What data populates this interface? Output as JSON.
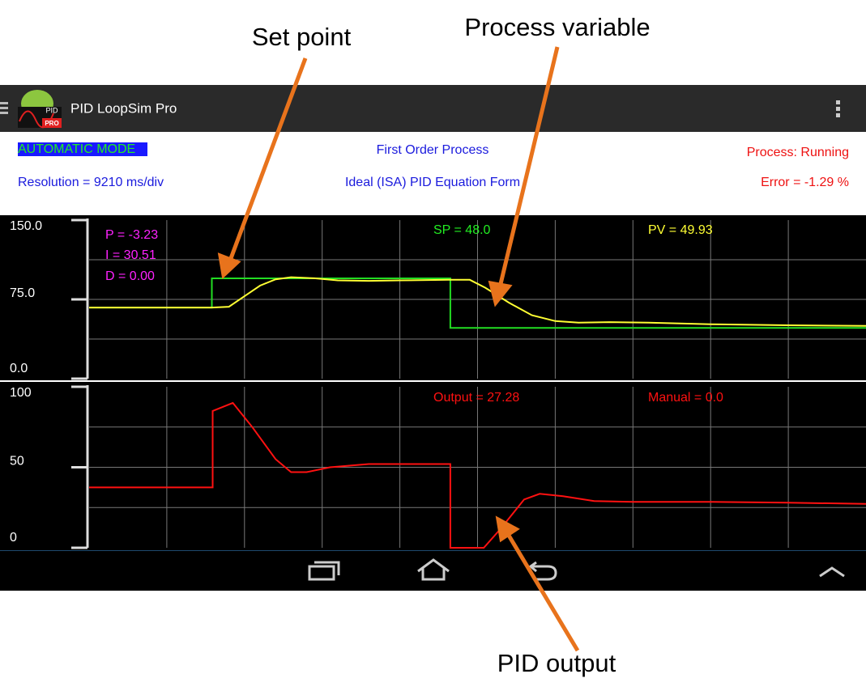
{
  "annotations": {
    "set_point": "Set point",
    "process_variable": "Process variable",
    "pid_output": "PID output"
  },
  "app": {
    "title": "PID LoopSim Pro",
    "icon": {
      "top": "PID",
      "badge": "PRO"
    }
  },
  "status": {
    "mode": "AUTOMATIC MODE",
    "process_type": "First Order Process",
    "process_state": "Process: Running",
    "resolution": "Resolution = 9210 ms/div",
    "equation": "Ideal (ISA) PID Equation Form",
    "error": "Error = -1.29 %"
  },
  "chart_data": [
    {
      "type": "line",
      "grid": true,
      "xlim": [
        0,
        10
      ],
      "ylim": [
        0,
        150
      ],
      "yticks": [
        {
          "value": 0,
          "label": "0.0"
        },
        {
          "value": 75,
          "label": "75.0"
        },
        {
          "value": 150,
          "label": "150.0"
        }
      ],
      "readouts": [
        {
          "text": "P = -3.23",
          "color": "#ff22ff"
        },
        {
          "text": "I = 30.51",
          "color": "#ff22ff"
        },
        {
          "text": "D = 0.00",
          "color": "#ff22ff"
        },
        {
          "text": "SP = 48.0",
          "color": "#22ee22"
        },
        {
          "text": "PV = 49.93",
          "color": "#ffff33"
        }
      ],
      "series": [
        {
          "color": "#22dd22",
          "x": [
            0,
            1.58,
            1.58,
            4.65,
            4.65,
            10
          ],
          "values": [
            67.3,
            67.3,
            94.9,
            94.9,
            48,
            48
          ]
        },
        {
          "color": "#ffff33",
          "x": [
            0,
            1.58,
            1.8,
            2.0,
            2.2,
            2.4,
            2.6,
            2.9,
            3.2,
            3.6,
            4.0,
            4.65,
            4.9,
            5.1,
            5.4,
            5.7,
            6.0,
            6.3,
            6.7,
            7.2,
            8,
            9,
            10
          ],
          "values": [
            67.3,
            67.3,
            68,
            78,
            88,
            94,
            96,
            95,
            93,
            92.5,
            93,
            93.5,
            93.5,
            86,
            72,
            60,
            54.5,
            53,
            53.5,
            53,
            51.5,
            50.5,
            49.93
          ]
        }
      ]
    },
    {
      "type": "line",
      "grid": true,
      "xlim": [
        0,
        10
      ],
      "ylim": [
        0,
        100
      ],
      "yticks": [
        0,
        50,
        100
      ],
      "readouts": [
        {
          "text": "Output = 27.28",
          "color": "#ff1111"
        },
        {
          "text": "Manual = 0.0",
          "color": "#ff1111"
        }
      ],
      "series": [
        {
          "color": "#ff1111",
          "x": [
            0,
            1.59,
            1.59,
            1.85,
            2.1,
            2.4,
            2.6,
            2.8,
            3.1,
            3.6,
            4.65,
            4.65,
            5.08,
            5.3,
            5.6,
            5.8,
            6.1,
            6.5,
            7,
            8,
            9,
            10
          ],
          "values": [
            37.5,
            37.5,
            85,
            90,
            75,
            55,
            47,
            47,
            50,
            52,
            52,
            0,
            0,
            12,
            30,
            33.5,
            32,
            29,
            28.5,
            28.5,
            28,
            27.28
          ]
        }
      ]
    }
  ]
}
